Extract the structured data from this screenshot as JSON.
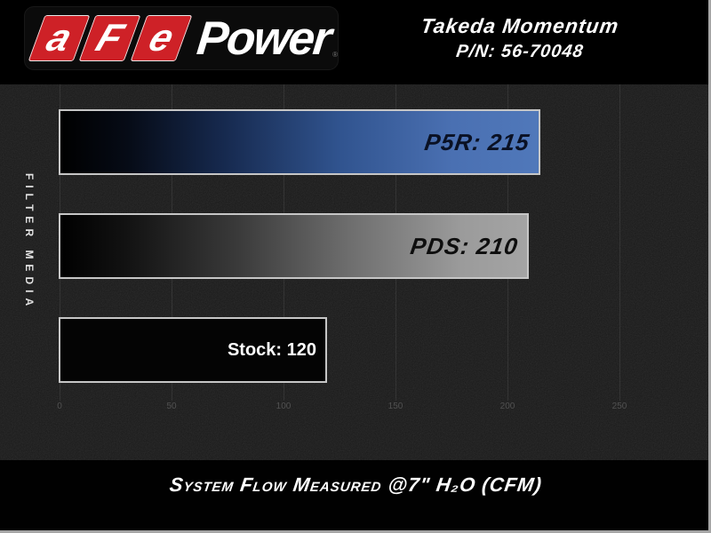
{
  "header": {
    "logo_letter_1": "a",
    "logo_letter_2": "F",
    "logo_letter_3": "e",
    "logo_wordmark": "Power",
    "registered_mark": "®",
    "product_title": "Takeda Momentum",
    "part_number": "P/N: 56-70048"
  },
  "chart": {
    "y_axis_label": "FILTER MEDIA",
    "caption": "System Flow Measured @7\" H₂O (CFM)"
  },
  "chart_data": {
    "type": "bar",
    "orientation": "horizontal",
    "title": "Takeda Momentum P/N: 56-70048",
    "categories": [
      "P5R",
      "PDS",
      "Stock"
    ],
    "values": [
      215,
      210,
      120
    ],
    "bar_labels": [
      "P5R: 215",
      "PDS: 210",
      "Stock: 120"
    ],
    "bar_colors": [
      {
        "name": "blue-gradient",
        "from": "#000000",
        "to": "#5078ba"
      },
      {
        "name": "silver-gradient",
        "from": "#000000",
        "to": "#a4a4a4"
      },
      {
        "name": "black",
        "from": "#040404",
        "to": "#040404"
      }
    ],
    "value_label_position": "inside-right",
    "xlabel": "System Flow Measured @7\" H₂O (CFM)",
    "ylabel": "Filter Media",
    "xlim": [
      0,
      270
    ],
    "x_ticks": [
      0,
      50,
      100,
      150,
      200,
      250
    ],
    "grid": "vertical",
    "legend": "none"
  },
  "colors": {
    "brand_red": "#ce2127",
    "bar_blue": "#5078ba",
    "bar_silver": "#a4a4a4",
    "background": "#000000",
    "chart_texture": "#191919",
    "tick_text": "#515151",
    "bar_border": "#c6c6c6"
  }
}
